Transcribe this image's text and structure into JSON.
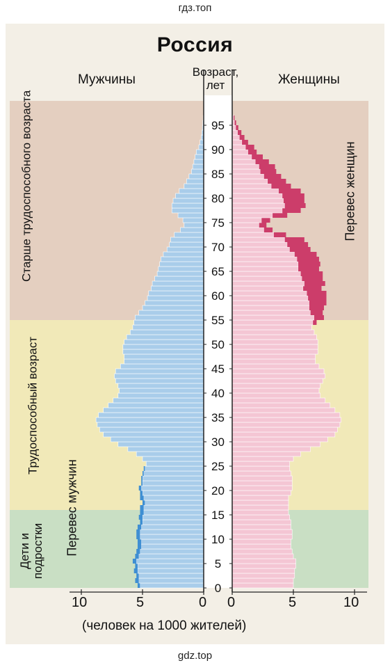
{
  "watermark_top": "гдз.топ",
  "watermark_bottom": "gdz.top",
  "chart_data": {
    "type": "bar",
    "title": "Россия",
    "left_label": "Мужчины",
    "right_label": "Женщины",
    "age_label_line1": "Возраст,",
    "age_label_line2": "лет",
    "xlabel": "(человек на 1000 жителей)",
    "x_ticks_left": [
      "10",
      "5",
      "0"
    ],
    "x_ticks_right": [
      "0",
      "5",
      "10"
    ],
    "xlim": [
      0,
      11
    ],
    "age_ticks": [
      "95",
      "90",
      "85",
      "80",
      "75",
      "70",
      "65",
      "60",
      "55",
      "50",
      "45",
      "40",
      "35",
      "30",
      "25",
      "20",
      "15",
      "10",
      "5",
      "0"
    ],
    "groups": [
      {
        "label": "Старше трудоспособного возраста",
        "range": [
          55,
          100
        ],
        "color": "#e4cfc0"
      },
      {
        "label": "Трудоспособный возраст",
        "range": [
          16,
          55
        ],
        "color": "#f1e9b8"
      },
      {
        "label": "Дети и подростки",
        "range": [
          0,
          16
        ],
        "color": "#c9dfc4"
      }
    ],
    "group_labels": {
      "elder": "Старше трудоспособного возраста",
      "working": "Трудоспособный возраст",
      "children_line1": "Дети и",
      "children_line2": "подростки"
    },
    "annotation_women": "Перевес женщин",
    "annotation_men": "Перевес мужчин",
    "series": [
      {
        "name": "Мужчины",
        "color": "#a9cdea",
        "values": [
          5.2,
          5.3,
          5.3,
          5.4,
          5.4,
          5.5,
          5.3,
          5.2,
          5.1,
          5.1,
          5.2,
          5.2,
          5.1,
          5.0,
          5.0,
          4.9,
          4.9,
          4.8,
          4.9,
          5.0,
          5.1,
          5.0,
          5.0,
          4.9,
          4.8,
          4.7,
          5.0,
          5.5,
          6.2,
          7.0,
          7.6,
          8.2,
          8.5,
          8.7,
          8.8,
          8.6,
          8.2,
          7.8,
          7.4,
          7.0,
          6.9,
          7.0,
          7.2,
          7.3,
          7.2,
          6.8,
          6.5,
          6.5,
          6.6,
          6.6,
          6.5,
          6.3,
          6.0,
          5.8,
          5.7,
          5.6,
          5.3,
          5.0,
          4.8,
          4.6,
          4.5,
          4.3,
          4.2,
          4.0,
          3.8,
          3.7,
          3.6,
          3.5,
          3.3,
          3.0,
          2.8,
          2.7,
          2.4,
          1.9,
          1.6,
          1.7,
          2.1,
          2.6,
          2.6,
          2.5,
          2.3,
          2.0,
          1.6,
          1.4,
          1.2,
          1.0,
          0.9,
          0.8,
          0.7,
          0.6,
          0.4,
          0.3,
          0.2,
          0.15,
          0.1,
          0.08,
          0.05
        ]
      },
      {
        "name": "Женщины",
        "color": "#f4c6d4",
        "values": [
          5.0,
          5.0,
          5.1,
          5.1,
          5.2,
          5.2,
          5.0,
          4.9,
          4.8,
          4.8,
          4.9,
          4.9,
          4.8,
          4.8,
          4.7,
          4.6,
          4.6,
          4.6,
          4.6,
          4.8,
          4.9,
          4.9,
          4.9,
          4.8,
          4.7,
          4.7,
          5.0,
          5.6,
          6.4,
          7.2,
          7.8,
          8.4,
          8.6,
          8.8,
          8.9,
          8.8,
          8.4,
          8.0,
          7.6,
          7.2,
          7.1,
          7.2,
          7.4,
          7.6,
          7.5,
          7.1,
          6.8,
          6.8,
          7.0,
          7.0,
          7.0,
          6.9,
          6.7,
          6.5,
          6.6,
          6.7,
          6.4,
          6.3,
          6.3,
          6.2,
          6.1,
          5.8,
          5.9,
          5.7,
          5.6,
          5.4,
          5.4,
          5.3,
          5.1,
          4.7,
          4.5,
          4.3,
          3.4,
          2.6,
          2.2,
          2.4,
          3.3,
          4.1,
          4.3,
          4.2,
          4.1,
          3.8,
          3.2,
          2.9,
          2.6,
          2.3,
          2.2,
          1.9,
          1.6,
          1.3,
          1.1,
          0.8,
          0.6,
          0.45,
          0.3,
          0.2,
          0.12
        ]
      },
      {
        "name": "Перевес женщин",
        "color": "#cc3d6a",
        "values": [
          0,
          0,
          0,
          0,
          0,
          0,
          0,
          0,
          0,
          0,
          0,
          0,
          0,
          0,
          0,
          0,
          0,
          0,
          0,
          0,
          0,
          0,
          0,
          0,
          0,
          0,
          0,
          0,
          0,
          0,
          0,
          0,
          0,
          0,
          0,
          0,
          0,
          0,
          0,
          0,
          0,
          0,
          0,
          0,
          0,
          0,
          0,
          0,
          0,
          0,
          0,
          0,
          0,
          0,
          0.3,
          0.8,
          1.0,
          1.2,
          1.4,
          1.5,
          1.6,
          1.5,
          1.7,
          1.7,
          1.8,
          1.7,
          1.8,
          1.8,
          1.8,
          1.7,
          1.7,
          1.6,
          1.0,
          0.7,
          0.6,
          0.7,
          1.2,
          1.5,
          1.7,
          1.7,
          1.8,
          1.8,
          1.6,
          1.5,
          1.4,
          1.3,
          1.3,
          1.1,
          0.9,
          0.7,
          0.7,
          0.5,
          0.4,
          0.3,
          0.2,
          0.12,
          0.07
        ]
      },
      {
        "name": "Перевес мужчин",
        "color": "#3f8fd3",
        "values": [
          0.2,
          0.3,
          0.2,
          0.3,
          0.2,
          0.3,
          0.3,
          0.3,
          0.3,
          0.3,
          0.3,
          0.3,
          0.3,
          0.2,
          0.3,
          0.3,
          0.3,
          0.2,
          0.3,
          0.2,
          0.2,
          0.1,
          0.1,
          0.1,
          0.1,
          0,
          0,
          0,
          0,
          0,
          0,
          0,
          0,
          0,
          0,
          0,
          0,
          0,
          0,
          0,
          0,
          0,
          0,
          0,
          0,
          0,
          0,
          0,
          0,
          0,
          0,
          0,
          0,
          0,
          0,
          0,
          0,
          0,
          0,
          0,
          0,
          0,
          0,
          0,
          0,
          0,
          0,
          0,
          0,
          0,
          0,
          0,
          0,
          0,
          0,
          0,
          0,
          0,
          0,
          0,
          0,
          0,
          0,
          0,
          0,
          0,
          0,
          0,
          0,
          0,
          0,
          0,
          0,
          0,
          0,
          0,
          0
        ]
      }
    ]
  }
}
